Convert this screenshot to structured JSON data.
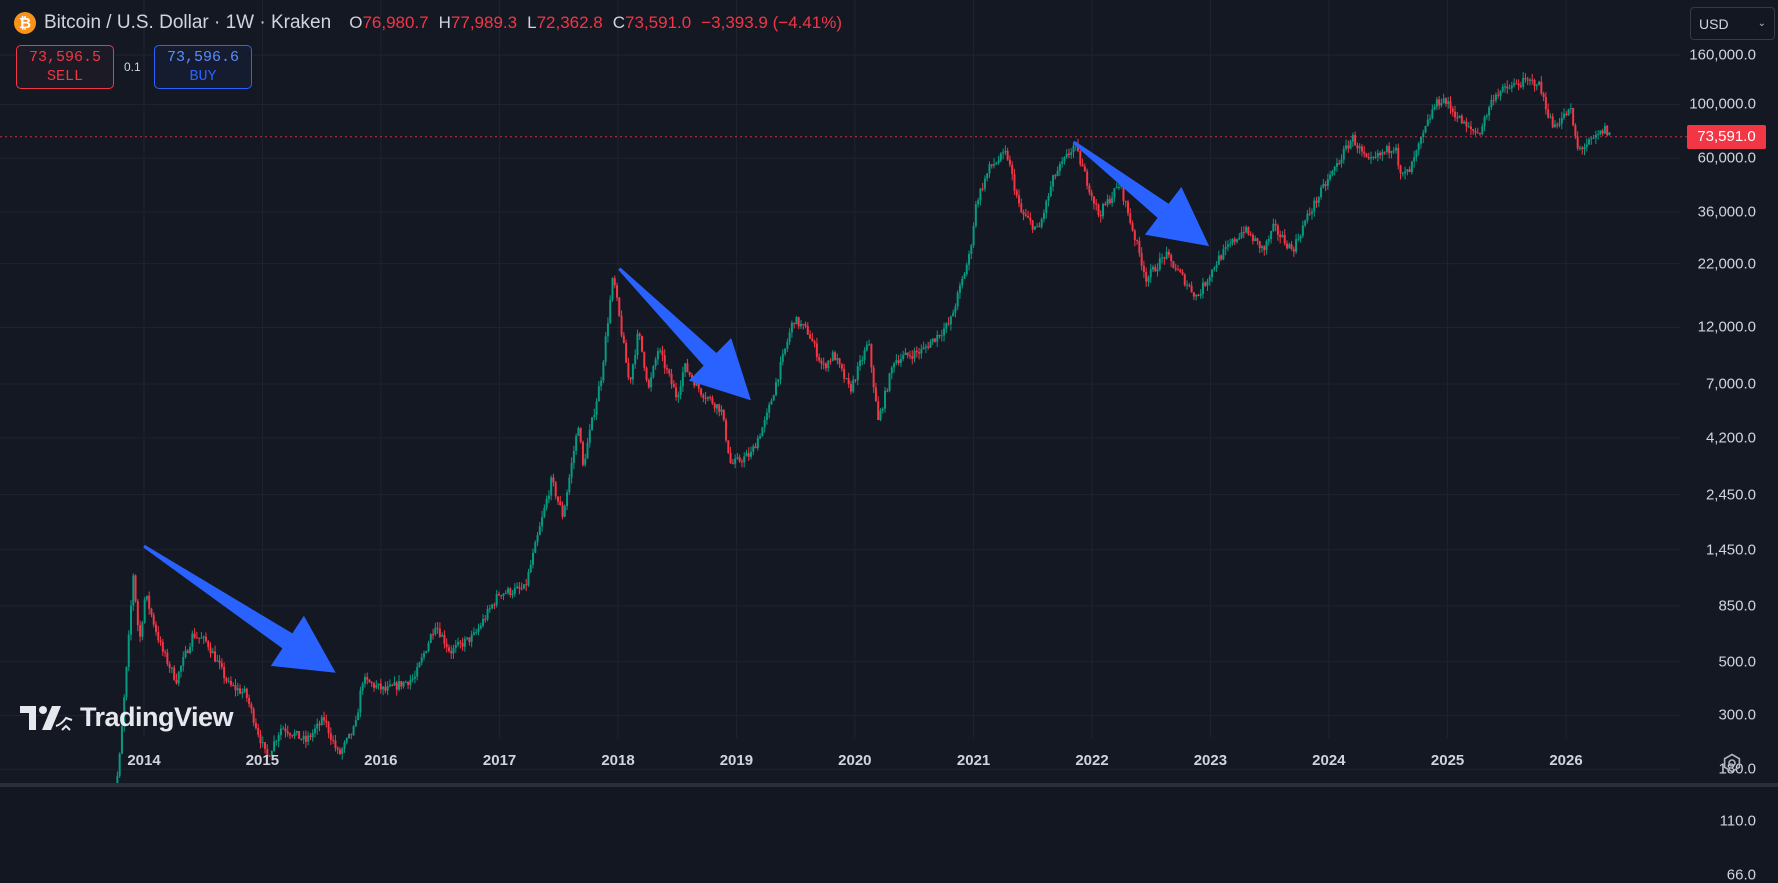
{
  "header": {
    "symbol": "Bitcoin / U.S. Dollar · 1W · Kraken",
    "coin_icon": "bitcoin-icon",
    "coin_glyph": "₿",
    "ohlc": {
      "o_label": "O",
      "o": "76,980.7",
      "h_label": "H",
      "h": "77,989.3",
      "l_label": "L",
      "l": "72,362.8",
      "c_label": "C",
      "c": "73,591.0",
      "change": "−3,393.9 (−4.41%)"
    }
  },
  "trade": {
    "sell_price": "73,596.5",
    "sell_label": "SELL",
    "quantity": "0.1",
    "buy_price": "73,596.6",
    "buy_label": "BUY"
  },
  "currency": {
    "selected": "USD"
  },
  "branding": {
    "logo_text": "TradingView"
  },
  "colors": {
    "background": "#141823",
    "up": "#089981",
    "down": "#f23645",
    "arrow": "#2962ff",
    "grid": "#1f2330",
    "text": "#d1d4dc"
  },
  "chart_data": {
    "type": "candlestick",
    "scale": "log",
    "interval": "1W",
    "last_price": 73591.0,
    "last_price_label": "73,591.0",
    "ylim": [
      66,
      175000
    ],
    "y_ticks": [
      {
        "value": 160000,
        "label": "160,000.0"
      },
      {
        "value": 100000,
        "label": "100,000.0"
      },
      {
        "value": 60000,
        "label": "60,000.0"
      },
      {
        "value": 36000,
        "label": "36,000.0"
      },
      {
        "value": 22000,
        "label": "22,000.0"
      },
      {
        "value": 12000,
        "label": "12,000.0"
      },
      {
        "value": 7000,
        "label": "7,000.0"
      },
      {
        "value": 4200,
        "label": "4,200.0"
      },
      {
        "value": 2450,
        "label": "2,450.0"
      },
      {
        "value": 1450,
        "label": "1,450.0"
      },
      {
        "value": 850,
        "label": "850.0"
      },
      {
        "value": 500,
        "label": "500.0"
      },
      {
        "value": 300,
        "label": "300.0"
      },
      {
        "value": 180,
        "label": "180.0"
      },
      {
        "value": 110,
        "label": "110.0"
      },
      {
        "value": 66,
        "label": "66.0"
      }
    ],
    "x_ticks": [
      "2014",
      "2015",
      "2016",
      "2017",
      "2018",
      "2019",
      "2020",
      "2021",
      "2022",
      "2023",
      "2024",
      "2025",
      "2026"
    ],
    "price_path": [
      [
        "2013-09-20",
        120
      ],
      [
        "2013-10-15",
        180
      ],
      [
        "2013-11-10",
        500
      ],
      [
        "2013-11-29",
        1150
      ],
      [
        "2013-12-18",
        600
      ],
      [
        "2014-01-05",
        950
      ],
      [
        "2014-02-25",
        560
      ],
      [
        "2014-04-10",
        420
      ],
      [
        "2014-06-01",
        650
      ],
      [
        "2014-07-15",
        600
      ],
      [
        "2014-09-20",
        400
      ],
      [
        "2014-11-10",
        370
      ],
      [
        "2015-01-14",
        200
      ],
      [
        "2015-03-01",
        270
      ],
      [
        "2015-05-15",
        235
      ],
      [
        "2015-07-10",
        290
      ],
      [
        "2015-08-24",
        205
      ],
      [
        "2015-10-15",
        270
      ],
      [
        "2015-11-05",
        420
      ],
      [
        "2016-01-15",
        380
      ],
      [
        "2016-04-15",
        430
      ],
      [
        "2016-06-17",
        720
      ],
      [
        "2016-08-02",
        550
      ],
      [
        "2016-10-15",
        640
      ],
      [
        "2016-12-31",
        960
      ],
      [
        "2017-03-20",
        1000
      ],
      [
        "2017-06-10",
        2800
      ],
      [
        "2017-07-15",
        2000
      ],
      [
        "2017-09-01",
        4800
      ],
      [
        "2017-09-15",
        3200
      ],
      [
        "2017-11-10",
        7500
      ],
      [
        "2017-12-17",
        19500
      ],
      [
        "2018-02-05",
        7000
      ],
      [
        "2018-03-05",
        11500
      ],
      [
        "2018-04-06",
        6700
      ],
      [
        "2018-05-05",
        9800
      ],
      [
        "2018-07-01",
        6200
      ],
      [
        "2018-07-25",
        8300
      ],
      [
        "2018-09-15",
        6500
      ],
      [
        "2018-11-15",
        5500
      ],
      [
        "2018-12-15",
        3250
      ],
      [
        "2019-02-15",
        3600
      ],
      [
        "2019-04-02",
        5000
      ],
      [
        "2019-06-26",
        13000
      ],
      [
        "2019-08-10",
        11500
      ],
      [
        "2019-09-25",
        8200
      ],
      [
        "2019-10-28",
        9300
      ],
      [
        "2019-12-17",
        6600
      ],
      [
        "2020-02-12",
        10400
      ],
      [
        "2020-03-13",
        4900
      ],
      [
        "2020-05-01",
        8800
      ],
      [
        "2020-07-25",
        9600
      ],
      [
        "2020-10-20",
        12500
      ],
      [
        "2020-12-20",
        24000
      ],
      [
        "2021-01-10",
        40000
      ],
      [
        "2021-02-20",
        55000
      ],
      [
        "2021-04-13",
        63000
      ],
      [
        "2021-05-25",
        36000
      ],
      [
        "2021-07-20",
        30000
      ],
      [
        "2021-09-05",
        50000
      ],
      [
        "2021-11-08",
        68000
      ],
      [
        "2022-01-22",
        35000
      ],
      [
        "2022-03-28",
        47000
      ],
      [
        "2022-06-18",
        19000
      ],
      [
        "2022-08-15",
        24000
      ],
      [
        "2022-11-21",
        16000
      ],
      [
        "2023-01-25",
        23000
      ],
      [
        "2023-04-14",
        30500
      ],
      [
        "2023-06-15",
        25000
      ],
      [
        "2023-07-15",
        31000
      ],
      [
        "2023-09-11",
        25000
      ],
      [
        "2023-10-25",
        34000
      ],
      [
        "2023-12-10",
        44000
      ],
      [
        "2024-03-14",
        73000
      ],
      [
        "2024-05-01",
        57000
      ],
      [
        "2024-07-29",
        69000
      ],
      [
        "2024-08-05",
        50000
      ],
      [
        "2024-09-06",
        53000
      ],
      [
        "2024-11-20",
        98000
      ],
      [
        "2024-12-17",
        106000
      ],
      [
        "2025-03-01",
        80000
      ],
      [
        "2025-04-08",
        76000
      ],
      [
        "2025-05-25",
        110000
      ],
      [
        "2025-08-14",
        123000
      ],
      [
        "2025-10-06",
        124000
      ],
      [
        "2025-11-21",
        81000
      ],
      [
        "2026-01-15",
        95000
      ],
      [
        "2026-02-05",
        65000
      ],
      [
        "2026-03-20",
        70000
      ],
      [
        "2026-05-01",
        79000
      ],
      [
        "2026-05-20",
        73591
      ]
    ],
    "annotations": [
      {
        "type": "arrow",
        "from": [
          "2014-01-01",
          1500
        ],
        "to": [
          "2015-08-15",
          450
        ]
      },
      {
        "type": "arrow",
        "from": [
          "2018-01-05",
          21000
        ],
        "to": [
          "2019-02-15",
          6000
        ]
      },
      {
        "type": "arrow",
        "from": [
          "2021-11-05",
          70000
        ],
        "to": [
          "2022-12-28",
          26000
        ]
      }
    ]
  }
}
